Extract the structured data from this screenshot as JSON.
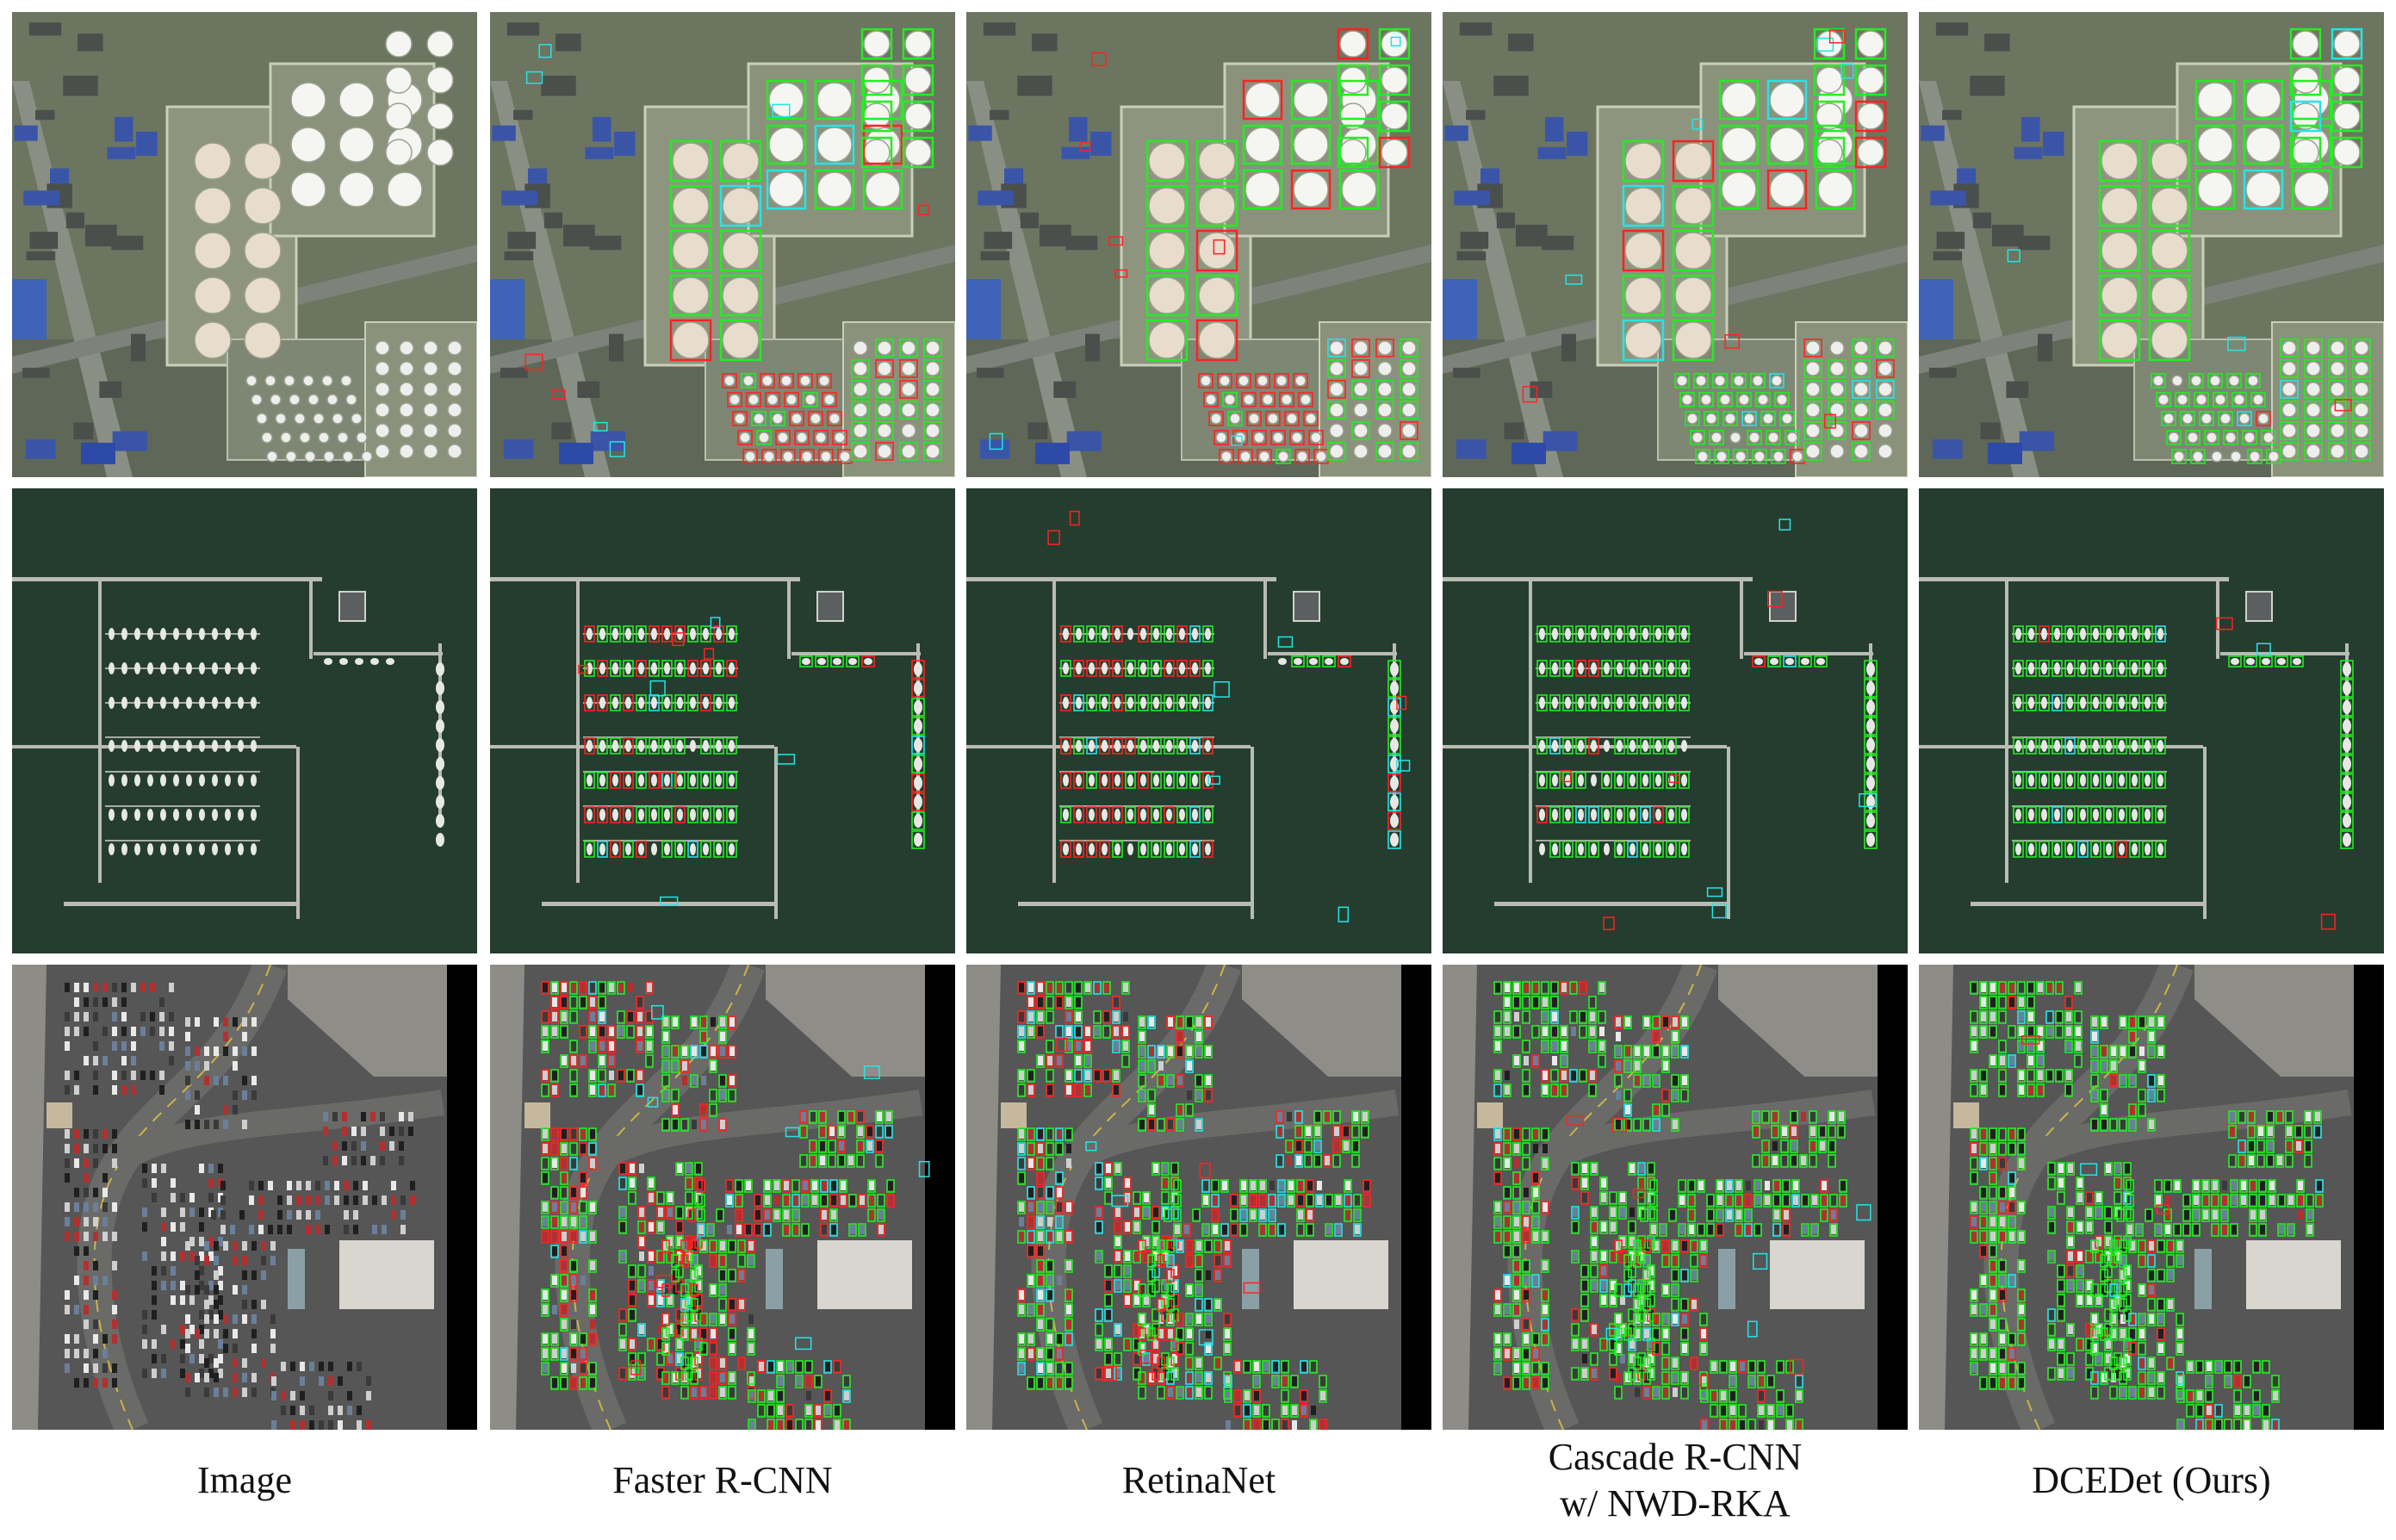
{
  "columns": [
    {
      "key": "image",
      "lines": [
        "Image"
      ]
    },
    {
      "key": "faster",
      "lines": [
        "Faster R-CNN"
      ]
    },
    {
      "key": "retina",
      "lines": [
        "RetinaNet"
      ]
    },
    {
      "key": "cascade",
      "lines": [
        "Cascade R-CNN",
        "w/ NWD-RKA"
      ]
    },
    {
      "key": "dcedet",
      "lines": [
        "DCEDet (Ours)"
      ]
    }
  ],
  "rows": [
    "oil-tank-industrial-area",
    "marina-harbor-boats",
    "parking-lot-vehicles"
  ],
  "colors": {
    "true_positive": "#22ee22",
    "false_positive": "#ff2222",
    "false_negative": "#22e6e6",
    "water": "#253d2e",
    "asphalt": "#565656"
  }
}
